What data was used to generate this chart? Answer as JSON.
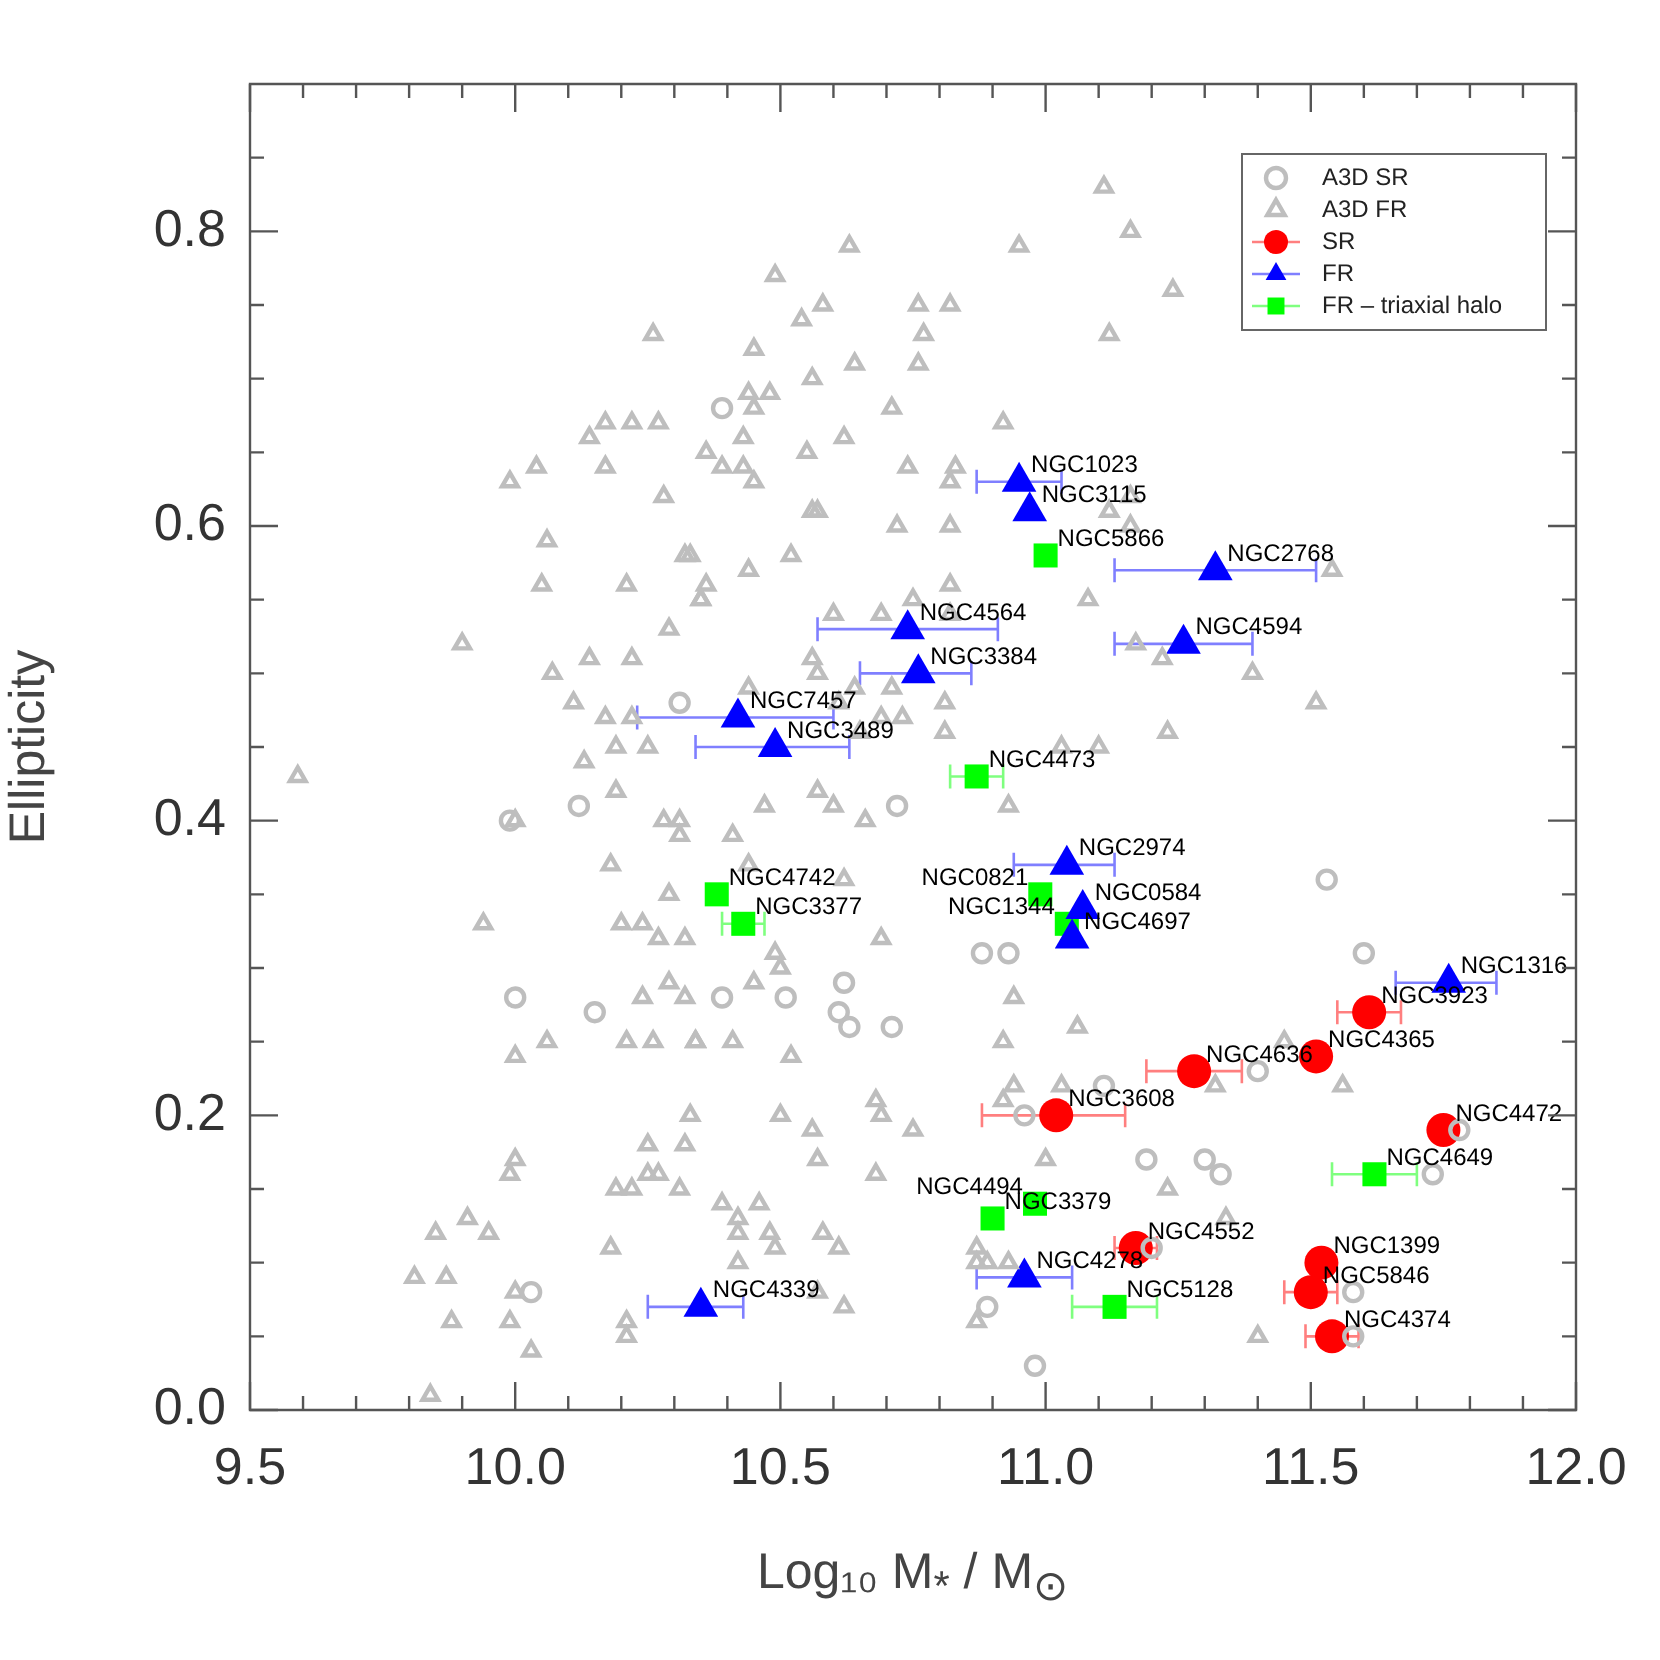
{
  "chart_data": {
    "type": "scatter",
    "xlabel": "Log₁₀ M$_{*}$ / M$_{⊙}$",
    "ylabel": "Ellipticity",
    "xlim": [
      9.5,
      12
    ],
    "ylim": [
      0,
      0.9
    ],
    "xticks": [
      9.5,
      {
        "value": 9.6,
        "label": null
      },
      {
        "value": 9.7,
        "label": null
      },
      {
        "value": 9.8,
        "label": null
      },
      {
        "value": 9.9,
        "label": null
      },
      {
        "value": 10,
        "label": "10.0"
      },
      {
        "value": 10.1,
        "label": null
      },
      {
        "value": 10.2,
        "label": null
      },
      {
        "value": 10.3,
        "label": null
      },
      {
        "value": 10.4,
        "label": null
      },
      10.5,
      {
        "value": 10.6,
        "label": null
      },
      {
        "value": 10.7,
        "label": null
      },
      {
        "value": 10.8,
        "label": null
      },
      {
        "value": 10.9,
        "label": null
      },
      {
        "value": 11,
        "label": "11.0"
      },
      {
        "value": 11.1,
        "label": null
      },
      {
        "value": 11.2,
        "label": null
      },
      {
        "value": 11.3,
        "label": null
      },
      {
        "value": 11.4,
        "label": null
      },
      11.5,
      {
        "value": 11.6,
        "label": null
      },
      {
        "value": 11.7,
        "label": null
      },
      {
        "value": 11.8,
        "label": null
      },
      {
        "value": 11.9,
        "label": null
      },
      {
        "value": 12,
        "label": "12.0"
      }
    ],
    "yticks": [
      {
        "value": 0,
        "label": "0.0"
      },
      {
        "value": 0.05,
        "label": null
      },
      {
        "value": 0.1,
        "label": null
      },
      {
        "value": 0.15,
        "label": null
      },
      0.2,
      {
        "value": 0.25,
        "label": null
      },
      {
        "value": 0.3,
        "label": null
      },
      {
        "value": 0.35,
        "label": null
      },
      0.4,
      {
        "value": 0.45,
        "label": null
      },
      {
        "value": 0.5,
        "label": null
      },
      {
        "value": 0.55,
        "label": null
      },
      0.6,
      {
        "value": 0.65,
        "label": null
      },
      {
        "value": 0.7,
        "label": null
      },
      {
        "value": 0.75,
        "label": null
      },
      0.8,
      {
        "value": 0.85,
        "label": null
      }
    ],
    "legend": "top right",
    "grid": false,
    "series": [
      {
        "name": "A3D SR",
        "color": "#bebebe",
        "marker": "circle",
        "x": [
          10.39,
          10.31,
          10.12,
          9.99,
          10.0,
          10.15,
          10.03,
          10.72,
          10.39,
          10.51,
          10.62,
          10.61,
          10.63,
          10.71,
          10.88,
          10.93,
          11.11,
          10.96,
          11.19,
          10.89,
          10.98,
          11.53,
          11.6,
          11.4,
          11.3,
          11.33,
          11.73,
          11.78,
          11.58,
          11.58,
          11.2
        ],
        "values": [
          0.68,
          0.48,
          0.41,
          0.4,
          0.28,
          0.27,
          0.08,
          0.41,
          0.28,
          0.28,
          0.29,
          0.27,
          0.26,
          0.26,
          0.31,
          0.31,
          0.22,
          0.2,
          0.17,
          0.07,
          0.03,
          0.36,
          0.31,
          0.23,
          0.17,
          0.16,
          0.16,
          0.19,
          0.08,
          0.05,
          0.11
        ]
      },
      {
        "name": "A3D FR",
        "color": "#bebebe",
        "marker": "triangle",
        "x": [
          10.26,
          10.14,
          10.17,
          10.22,
          10.27,
          10.04,
          10.17,
          9.99,
          10.28,
          10.06,
          10.32,
          10.05,
          10.21,
          10.35,
          10.29,
          9.9,
          10.07,
          10.14,
          10.22,
          10.11,
          10.17,
          10.22,
          10.19,
          10.25,
          10.13,
          11.11,
          11.16,
          10.63,
          10.95,
          10.49,
          10.58,
          10.54,
          10.76,
          10.82,
          10.77,
          11.12,
          10.45,
          10.64,
          10.76,
          10.56,
          10.44,
          10.48,
          10.45,
          10.71,
          10.92,
          10.43,
          10.62,
          10.36,
          10.55,
          10.39,
          10.43,
          10.74,
          10.83,
          10.45,
          10.82,
          10.56,
          10.57,
          10.72,
          10.82,
          11.12,
          11.16,
          11.16,
          10.33,
          10.52,
          10.44,
          10.36,
          10.35,
          10.82,
          10.75,
          11.08,
          10.6,
          10.69,
          10.82,
          11.17,
          10.56,
          10.57,
          10.64,
          10.44,
          10.71,
          10.61,
          10.81,
          10.69,
          10.65,
          10.73,
          10.81,
          11.03,
          11.1,
          11.24,
          11.54,
          11.22,
          11.39,
          11.51,
          11.23,
          9.59,
          10.19,
          10.0,
          10.28,
          10.31,
          10.31,
          10.18,
          10.29,
          9.94,
          10.2,
          10.24,
          10.27,
          10.32,
          10.29,
          10.24,
          10.32,
          10.0,
          10.06,
          10.21,
          10.26,
          10.34,
          10.33,
          10.25,
          10.32,
          10.0,
          9.99,
          10.25,
          10.27,
          10.19,
          10.22,
          10.31,
          9.85,
          9.91,
          9.95,
          10.18,
          9.81,
          9.87,
          10.0,
          9.88,
          9.99,
          10.21,
          10.21,
          10.03,
          9.84,
          10.47,
          10.57,
          10.6,
          10.66,
          10.93,
          10.41,
          10.44,
          10.62,
          10.69,
          10.49,
          10.5,
          10.45,
          10.94,
          11.06,
          10.92,
          10.34,
          10.41,
          10.52,
          10.68,
          10.69,
          10.75,
          10.5,
          10.56,
          10.57,
          10.68,
          10.94,
          11.03,
          10.92,
          11.0,
          10.39,
          10.46,
          10.42,
          10.42,
          10.48,
          10.49,
          10.58,
          10.61,
          10.42,
          10.57,
          10.62,
          10.87,
          10.87,
          10.89,
          10.93,
          10.87,
          11.45,
          11.32,
          11.56,
          11.23,
          11.34,
          11.4
        ],
        "values": [
          0.73,
          0.66,
          0.67,
          0.67,
          0.67,
          0.64,
          0.64,
          0.63,
          0.62,
          0.59,
          0.58,
          0.56,
          0.56,
          0.55,
          0.53,
          0.52,
          0.5,
          0.51,
          0.51,
          0.48,
          0.47,
          0.47,
          0.45,
          0.45,
          0.44,
          0.83,
          0.8,
          0.79,
          0.79,
          0.77,
          0.75,
          0.74,
          0.75,
          0.75,
          0.73,
          0.73,
          0.72,
          0.71,
          0.71,
          0.7,
          0.69,
          0.69,
          0.68,
          0.68,
          0.67,
          0.66,
          0.66,
          0.65,
          0.65,
          0.64,
          0.64,
          0.64,
          0.64,
          0.63,
          0.63,
          0.61,
          0.61,
          0.6,
          0.6,
          0.61,
          0.62,
          0.6,
          0.58,
          0.58,
          0.57,
          0.56,
          0.55,
          0.56,
          0.55,
          0.55,
          0.54,
          0.54,
          0.54,
          0.52,
          0.51,
          0.5,
          0.49,
          0.49,
          0.49,
          0.48,
          0.48,
          0.47,
          0.46,
          0.47,
          0.46,
          0.45,
          0.45,
          0.76,
          0.57,
          0.51,
          0.5,
          0.48,
          0.46,
          0.43,
          0.42,
          0.4,
          0.4,
          0.4,
          0.39,
          0.37,
          0.35,
          0.33,
          0.33,
          0.33,
          0.32,
          0.32,
          0.29,
          0.28,
          0.28,
          0.24,
          0.25,
          0.25,
          0.25,
          0.25,
          0.2,
          0.18,
          0.18,
          0.17,
          0.16,
          0.16,
          0.16,
          0.15,
          0.15,
          0.15,
          0.12,
          0.13,
          0.12,
          0.11,
          0.09,
          0.09,
          0.08,
          0.06,
          0.06,
          0.06,
          0.05,
          0.04,
          0.01,
          0.41,
          0.42,
          0.41,
          0.4,
          0.41,
          0.39,
          0.37,
          0.36,
          0.32,
          0.31,
          0.3,
          0.29,
          0.28,
          0.26,
          0.25,
          0.25,
          0.25,
          0.24,
          0.21,
          0.2,
          0.19,
          0.2,
          0.19,
          0.17,
          0.16,
          0.22,
          0.22,
          0.21,
          0.17,
          0.14,
          0.14,
          0.13,
          0.12,
          0.12,
          0.11,
          0.12,
          0.11,
          0.1,
          0.08,
          0.07,
          0.11,
          0.1,
          0.1,
          0.1,
          0.06,
          0.25,
          0.22,
          0.22,
          0.15,
          0.13,
          0.05
        ]
      },
      {
        "name": "SR",
        "color": "#ff0000",
        "marker": "circle",
        "x": [
          11.61,
          11.51,
          11.28,
          11.02,
          11.75,
          11.17,
          11.52,
          11.5,
          11.54
        ],
        "values": [
          0.27,
          0.24,
          0.23,
          0.2,
          0.19,
          0.11,
          0.1,
          0.08,
          0.05
        ],
        "xerrors": [
          [
            11.55,
            11.67
          ],
          null,
          [
            11.19,
            11.37
          ],
          [
            10.88,
            11.15
          ],
          null,
          [
            11.13,
            11.21
          ],
          null,
          [
            11.45,
            11.55
          ],
          [
            11.49,
            11.59
          ]
        ]
      },
      {
        "name": "FR",
        "color": "#0000ff",
        "marker": "triangle",
        "x": [
          10.95,
          10.97,
          11.32,
          11.26,
          10.74,
          10.76,
          10.42,
          10.49,
          11.04,
          11.07,
          11.05,
          11.76,
          10.96,
          10.35
        ],
        "values": [
          0.63,
          0.61,
          0.57,
          0.52,
          0.53,
          0.5,
          0.47,
          0.45,
          0.37,
          0.34,
          0.32,
          0.29,
          0.09,
          0.07
        ],
        "xerrors": [
          [
            10.87,
            11.03
          ],
          null,
          [
            11.13,
            11.51
          ],
          [
            11.13,
            11.39
          ],
          [
            10.57,
            10.91
          ],
          [
            10.65,
            10.86
          ],
          [
            10.23,
            10.6
          ],
          [
            10.34,
            10.63
          ],
          [
            10.94,
            11.13
          ],
          null,
          null,
          [
            11.66,
            11.85
          ],
          [
            10.87,
            11.05
          ],
          [
            10.25,
            10.43
          ]
        ]
      },
      {
        "name": "FR – triaxial halo",
        "color": "#00ff00",
        "marker": "square",
        "x": [
          11.0,
          10.87,
          10.38,
          10.43,
          10.99,
          11.04,
          10.98,
          10.9,
          11.13,
          11.62
        ],
        "values": [
          0.58,
          0.43,
          0.35,
          0.33,
          0.35,
          0.33,
          0.14,
          0.13,
          0.07,
          0.16
        ],
        "xerrors": [
          null,
          [
            10.82,
            10.92
          ],
          null,
          [
            10.39,
            10.47
          ],
          null,
          null,
          null,
          null,
          [
            11.05,
            11.21
          ],
          [
            11.54,
            11.7
          ]
        ]
      }
    ],
    "annotations": [
      {
        "text": "NGC3923",
        "x": 11.61,
        "y": 0.27
      },
      {
        "text": "NGC4365",
        "x": 11.51,
        "y": 0.24
      },
      {
        "text": "NGC4636",
        "x": 11.28,
        "y": 0.23
      },
      {
        "text": "NGC3608",
        "x": 11.02,
        "y": 0.2
      },
      {
        "text": "NGC4472",
        "x": 11.75,
        "y": 0.19
      },
      {
        "text": "NGC4552",
        "x": 11.17,
        "y": 0.11
      },
      {
        "text": "NGC1399",
        "x": 11.52,
        "y": 0.1
      },
      {
        "text": "NGC5846",
        "x": 11.5,
        "y": 0.08
      },
      {
        "text": "NGC4374",
        "x": 11.54,
        "y": 0.05
      },
      {
        "text": "NGC1023",
        "x": 10.95,
        "y": 0.63
      },
      {
        "text": "NGC3115",
        "x": 10.97,
        "y": 0.61
      },
      {
        "text": "NGC2768",
        "x": 11.32,
        "y": 0.57
      },
      {
        "text": "NGC4594",
        "x": 11.26,
        "y": 0.52
      },
      {
        "text": "NGC4564",
        "x": 10.74,
        "y": 0.53
      },
      {
        "text": "NGC3384",
        "x": 10.76,
        "y": 0.5
      },
      {
        "text": "NGC7457",
        "x": 10.42,
        "y": 0.47
      },
      {
        "text": "NGC3489",
        "x": 10.49,
        "y": 0.45
      },
      {
        "text": "NGC2974",
        "x": 11.04,
        "y": 0.37
      },
      {
        "text": "NGC0584",
        "x": 11.07,
        "y": 0.34
      },
      {
        "text": "NGC4697",
        "x": 11.05,
        "y": 0.32
      },
      {
        "text": "NGC1316",
        "x": 11.76,
        "y": 0.29
      },
      {
        "text": "NGC4278",
        "x": 10.96,
        "y": 0.09
      },
      {
        "text": "NGC4339",
        "x": 10.35,
        "y": 0.07
      },
      {
        "text": "NGC5866",
        "x": 11.0,
        "y": 0.58
      },
      {
        "text": "NGC4473",
        "x": 10.87,
        "y": 0.43
      },
      {
        "text": "NGC4742",
        "x": 10.38,
        "y": 0.35
      },
      {
        "text": "NGC3377",
        "x": 10.43,
        "y": 0.33
      },
      {
        "text": "NGC0821",
        "x": 10.99,
        "y": 0.35
      },
      {
        "text": "NGC1344",
        "x": 11.04,
        "y": 0.33
      },
      {
        "text": "NGC3379",
        "x": 10.9,
        "y": 0.13
      },
      {
        "text": "NGC4494",
        "x": 10.98,
        "y": 0.14
      },
      {
        "text": "NGC5128",
        "x": 11.13,
        "y": 0.07
      },
      {
        "text": "NGC4649",
        "x": 11.62,
        "y": 0.16
      }
    ]
  }
}
